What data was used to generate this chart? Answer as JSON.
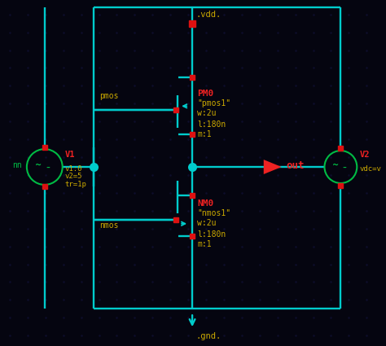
{
  "bg_color": "#050510",
  "wire_color": "#00cccc",
  "node_color": "#dd1111",
  "junction_color": "#00cccc",
  "label_yellow": "#ccaa00",
  "label_red": "#ee2222",
  "label_green": "#00bb44",
  "arrow_color": "#ee2222",
  "vdd_label": ".vdd.",
  "gnd_label": ".gnd.",
  "pmos_label": "pmos",
  "nmos_label": "nmos",
  "pm0_label": "PM0",
  "nm0_label": "NM0",
  "pmos_model": "\"pmos1\"",
  "nmos_model": "\"nmos1\"",
  "pmos_w": "w:2u",
  "nmos_w": "w:2u",
  "pmos_l": "l:180n",
  "nmos_l": "l:180n",
  "pmos_m": "m:1",
  "nmos_m": "m:1",
  "v1_label": "V1",
  "v1_v1": "v1:0",
  "v1_v2": "v2=5",
  "v1_tr": "tr=1p",
  "v2_label": "V2",
  "v2_params": "vdc=v",
  "out_label": "out",
  "grid_dot_color": "#0d0d2a",
  "figsize": [
    4.74,
    4.25
  ],
  "dpi": 100
}
